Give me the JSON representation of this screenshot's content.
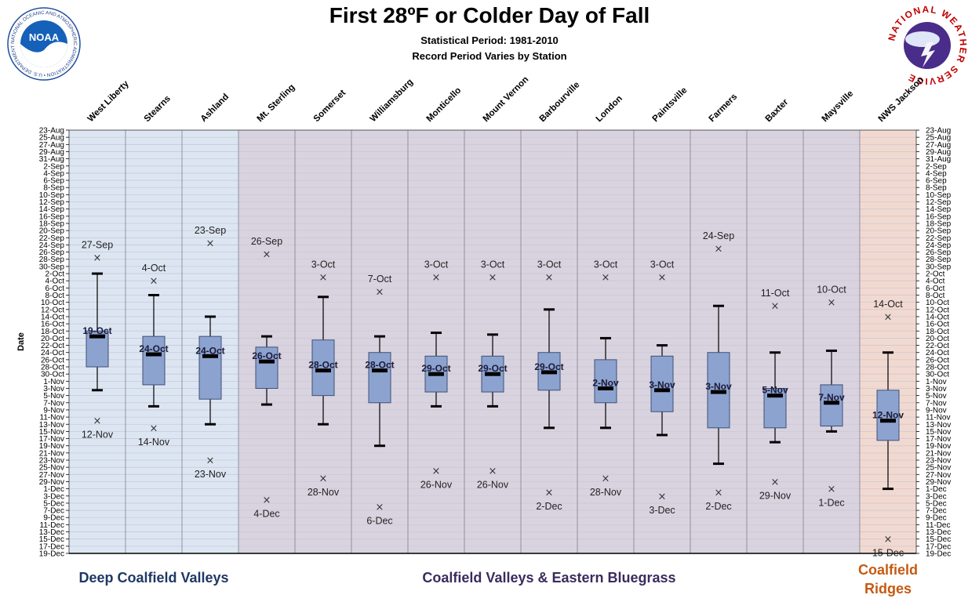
{
  "chart_data": {
    "type": "box",
    "title": "First 28ºF or Colder Day of Fall",
    "subtitle1": "Statistical Period: 1981-2010",
    "subtitle2": "Record Period Varies by Station",
    "ylabel": "Date",
    "y_ticks": [
      "23-Aug",
      "25-Aug",
      "27-Aug",
      "29-Aug",
      "31-Aug",
      "2-Sep",
      "4-Sep",
      "6-Sep",
      "8-Sep",
      "10-Sep",
      "12-Sep",
      "14-Sep",
      "16-Sep",
      "18-Sep",
      "20-Sep",
      "22-Sep",
      "24-Sep",
      "26-Sep",
      "28-Sep",
      "30-Sep",
      "2-Oct",
      "4-Oct",
      "6-Oct",
      "8-Oct",
      "10-Oct",
      "12-Oct",
      "14-Oct",
      "16-Oct",
      "18-Oct",
      "20-Oct",
      "22-Oct",
      "24-Oct",
      "26-Oct",
      "28-Oct",
      "30-Oct",
      "1-Nov",
      "3-Nov",
      "5-Nov",
      "7-Nov",
      "9-Nov",
      "11-Nov",
      "13-Nov",
      "15-Nov",
      "17-Nov",
      "19-Nov",
      "21-Nov",
      "23-Nov",
      "25-Nov",
      "27-Nov",
      "29-Nov",
      "1-Dec",
      "3-Dec",
      "5-Dec",
      "7-Dec",
      "9-Dec",
      "11-Dec",
      "13-Dec",
      "15-Dec",
      "17-Dec",
      "19-Dec"
    ],
    "stations": [
      {
        "name": "West Liberty",
        "median": "19-Oct",
        "early_record": "27-Sep",
        "late_record": "12-Nov",
        "record_early_day": 35.5,
        "whisker_low": 40,
        "q1": 56,
        "median_day": 57.5,
        "q3": 66,
        "whisker_high": 72.5,
        "record_late_day": 81
      },
      {
        "name": "Stearns",
        "median": "24-Oct",
        "early_record": "4-Oct",
        "late_record": "14-Nov",
        "record_early_day": 42,
        "whisker_low": 46,
        "q1": 57.5,
        "median_day": 62.5,
        "q3": 71,
        "whisker_high": 77,
        "record_early_day_label": "4-Oct",
        "record_late_day": 83
      },
      {
        "name": "Ashland",
        "median": "24-Oct",
        "early_record": "23-Sep",
        "late_record": "23-Nov",
        "record_early_day": 31.5,
        "whisker_low": 52,
        "q1": 57.5,
        "median_day": 63,
        "q3": 75,
        "whisker_high": 82,
        "record_late_day": 92
      },
      {
        "name": "Mt. Sterling",
        "median": "26-Oct",
        "early_record": "26-Sep",
        "late_record": "4-Dec",
        "record_early_day": 34.5,
        "whisker_low": 57.5,
        "q1": 60.5,
        "median_day": 64.5,
        "q3": 72,
        "whisker_high": 76.5,
        "record_late_day": 103
      },
      {
        "name": "Somerset",
        "median": "28-Oct",
        "early_record": "3-Oct",
        "late_record": "28-Nov",
        "record_early_day": 41,
        "whisker_low": 46.5,
        "q1": 58.5,
        "median_day": 67,
        "q3": 74,
        "whisker_high": 82,
        "record_late_day": 97
      },
      {
        "name": "Williamsburg",
        "median": "28-Oct",
        "early_record": "7-Oct",
        "late_record": "6-Dec",
        "record_early_day": 45,
        "whisker_low": 57.5,
        "q1": 62,
        "median_day": 67,
        "q3": 76,
        "whisker_high": 88,
        "record_late_day": 105
      },
      {
        "name": "Monticello",
        "median": "29-Oct",
        "early_record": "3-Oct",
        "late_record": "26-Nov",
        "record_early_day": 41,
        "whisker_low": 56.5,
        "q1": 63,
        "median_day": 68,
        "q3": 73,
        "whisker_high": 77,
        "record_late_day": 95
      },
      {
        "name": "Mount Vernon",
        "median": "29-Oct",
        "early_record": "3-Oct",
        "late_record": "26-Nov",
        "record_early_day": 41,
        "whisker_low": 57,
        "q1": 63,
        "median_day": 68,
        "q3": 73,
        "whisker_high": 77,
        "record_late_day": 95
      },
      {
        "name": "Barbourville",
        "median": "29-Oct",
        "early_record": "3-Oct",
        "late_record": "2-Dec",
        "record_early_day": 41,
        "whisker_low": 50,
        "q1": 62,
        "median_day": 67.5,
        "q3": 72.5,
        "whisker_high": 83,
        "record_late_day": 101
      },
      {
        "name": "London",
        "median": "2-Nov",
        "early_record": "3-Oct",
        "late_record": "28-Nov",
        "record_early_day": 41,
        "whisker_low": 58,
        "q1": 64,
        "median_day": 72,
        "q3": 76,
        "whisker_high": 83,
        "record_late_day": 97
      },
      {
        "name": "Paintsville",
        "median": "3-Nov",
        "early_record": "3-Oct",
        "late_record": "3-Dec",
        "record_early_day": 41,
        "whisker_low": 60,
        "q1": 63,
        "median_day": 72.5,
        "q3": 78.5,
        "whisker_high": 85,
        "record_late_day": 102
      },
      {
        "name": "Farmers",
        "median": "3-Nov",
        "early_record": "24-Sep",
        "late_record": "2-Dec",
        "record_early_day": 33,
        "whisker_low": 49,
        "q1": 62,
        "median_day": 73,
        "q3": 83,
        "whisker_high": 93,
        "record_late_day": 101
      },
      {
        "name": "Baxter",
        "median": "5-Nov",
        "early_record": "11-Oct",
        "late_record": "29-Nov",
        "record_early_day": 49,
        "whisker_low": 62,
        "q1": 72,
        "median_day": 74,
        "q3": 83,
        "whisker_high": 87,
        "record_late_day": 98
      },
      {
        "name": "Maysville",
        "median": "7-Nov",
        "early_record": "10-Oct",
        "late_record": "1-Dec",
        "record_early_day": 48,
        "whisker_low": 61.5,
        "q1": 71,
        "median_day": 76,
        "q3": 82.5,
        "whisker_high": 84,
        "record_late_day": 100
      },
      {
        "name": "NWS Jackson",
        "median": "12-Nov",
        "early_record": "14-Oct",
        "late_record": "15-Dec",
        "record_early_day": 52,
        "whisker_low": 62,
        "q1": 72.5,
        "median_day": 81,
        "q3": 86.5,
        "whisker_high": 100,
        "record_late_day": 114
      }
    ],
    "regions": [
      {
        "label": "Deep Coalfield  Valleys",
        "color": "#1f3864",
        "first": 0,
        "last": 2,
        "fill": "#dce6f2"
      },
      {
        "label": "Coalfield  Valleys & Eastern Bluegrass",
        "color": "#3b2b5c",
        "first": 3,
        "last": 13,
        "fill": "#d9d3df"
      },
      {
        "label": "Coalfield\nRidges",
        "color": "#c55a11",
        "first": 14,
        "last": 14,
        "fill": "#f2d9d0"
      }
    ],
    "box_color": "#8da3cf",
    "grid": true
  },
  "logos": {
    "noaa_text": "NOAA",
    "noaa_ring": "NATIONAL OCEANIC AND ATMOSPHERIC ADMINISTRATION • U.S. DEPARTMENT OF COMMERCE",
    "nws_ring": "NATIONAL WEATHER SERVICE"
  }
}
